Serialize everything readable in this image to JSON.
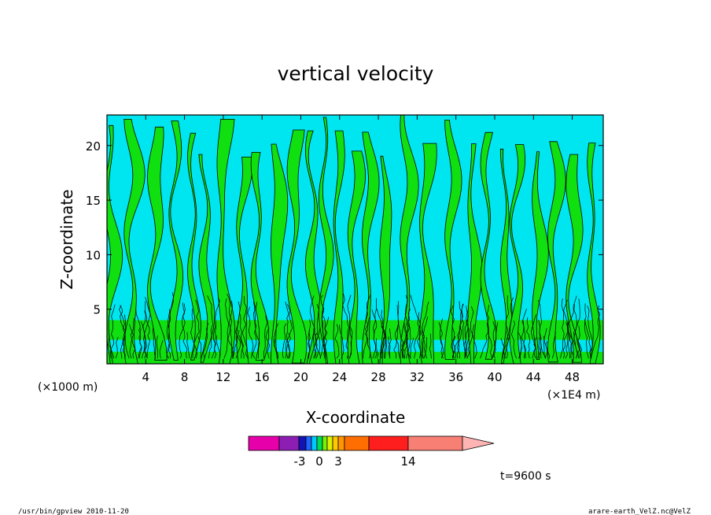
{
  "chart_data": {
    "type": "heatmap",
    "title": "vertical velocity",
    "xlabel": "X-coordinate",
    "ylabel": "Z-coordinate",
    "x_unit": "(×1000 m)",
    "x_unit_right": "(×1E4 m)",
    "x_ticks": [
      4,
      8,
      12,
      16,
      20,
      24,
      28,
      32,
      36,
      40,
      44,
      48
    ],
    "y_ticks": [
      5,
      10,
      15,
      20
    ],
    "xlim": [
      0,
      51.2
    ],
    "ylim": [
      0,
      22.8
    ],
    "time_label": "t=9600 s",
    "colorbar": {
      "tick_labels": [
        "-3",
        "0",
        "3",
        "14"
      ],
      "colors": [
        "#e600aa",
        "#8c1eb4",
        "#1414b4",
        "#1e64ff",
        "#00c8ff",
        "#00dc5a",
        "#78f000",
        "#dcf000",
        "#ffc800",
        "#ff9600",
        "#ff6e00",
        "#ff1e1e",
        "#f87f74",
        "#ffb4b4"
      ]
    },
    "field_colors": {
      "negative": "#00e6f0",
      "positive": "#10e010",
      "contour": "#000000"
    }
  },
  "footer": {
    "left": "/usr/bin/gpview   2010-11-20",
    "right": "arare-earth_VelZ.nc@VelZ"
  }
}
